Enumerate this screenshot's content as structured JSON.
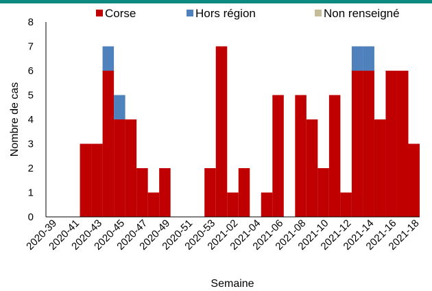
{
  "chart_data": {
    "type": "bar",
    "stacked": true,
    "xlabel": "Semaine",
    "ylabel": "Nombre de cas",
    "ylim": [
      0,
      8
    ],
    "yticks": [
      0,
      1,
      2,
      3,
      4,
      5,
      6,
      7,
      8
    ],
    "grid": false,
    "legend_position": "top",
    "categories": [
      "2020-39",
      "2020-40",
      "2020-41",
      "2020-42",
      "2020-43",
      "2020-44",
      "2020-45",
      "2020-46",
      "2020-47",
      "2020-48",
      "2020-49",
      "2020-50",
      "2020-51",
      "2020-52",
      "2020-53",
      "2021-01",
      "2021-02",
      "2021-03",
      "2021-04",
      "2021-05",
      "2021-06",
      "2021-07",
      "2021-08",
      "2021-09",
      "2021-10",
      "2021-11",
      "2021-12",
      "2021-13",
      "2021-14",
      "2021-15",
      "2021-16",
      "2021-17",
      "2021-18"
    ],
    "xtick_labels": [
      "2020-39",
      "2020-41",
      "2020-43",
      "2020-45",
      "2020-47",
      "2020-49",
      "2020-51",
      "2020-53",
      "2021-02",
      "2021-04",
      "2021-06",
      "2021-08",
      "2021-10",
      "2021-12",
      "2021-14",
      "2021-16",
      "2021-18"
    ],
    "series": [
      {
        "name": "Corse",
        "color": "#c00000",
        "values": [
          0,
          0,
          0,
          3,
          3,
          6,
          4,
          4,
          2,
          1,
          2,
          0,
          0,
          0,
          2,
          7,
          1,
          2,
          0,
          1,
          5,
          0,
          5,
          4,
          2,
          5,
          1,
          6,
          6,
          4,
          6,
          6,
          3
        ]
      },
      {
        "name": "Hors région",
        "color": "#4f81bd",
        "values": [
          0,
          0,
          0,
          0,
          0,
          1,
          1,
          0,
          0,
          0,
          0,
          0,
          0,
          0,
          0,
          0,
          0,
          0,
          0,
          0,
          0,
          0,
          0,
          0,
          0,
          0,
          0,
          1,
          1,
          0,
          0,
          0,
          0
        ]
      },
      {
        "name": "Non renseigné",
        "color": "#c4bd97",
        "values": [
          0,
          0,
          0,
          0,
          0,
          0,
          0,
          0,
          0,
          0,
          0,
          0,
          0,
          0,
          0,
          0,
          0,
          0,
          0,
          0,
          0,
          0,
          0,
          0,
          0,
          0,
          0,
          0,
          0,
          0,
          0,
          0,
          0
        ]
      }
    ]
  }
}
